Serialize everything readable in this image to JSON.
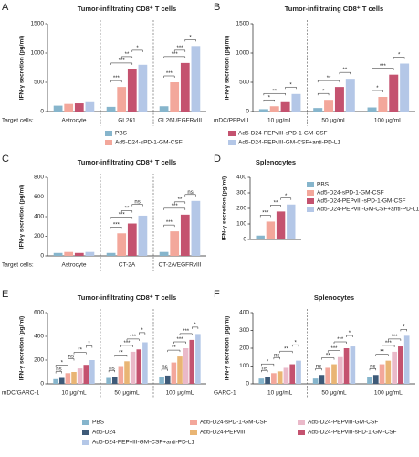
{
  "chart_data": [
    {
      "type": "bar",
      "panel": "A",
      "title": "Tumor-infiltrating CD8⁺ T cells",
      "ylabel": "IFN-γ secretion (pg/ml)",
      "xlabel": "Target cells:",
      "categories": [
        "Astrocyte",
        "GL261",
        "GL261/EGFRvIII"
      ],
      "series": [
        {
          "name": "PBS",
          "color": "#86b5cc",
          "values": [
            100,
            80,
            90
          ]
        },
        {
          "name": "Ad5-D24-sPD-1-GM-CSF",
          "color": "#f3a79b",
          "values": [
            130,
            420,
            500
          ]
        },
        {
          "name": "Ad5-D24-PEPvIII-sPD-1-GM-CSF",
          "color": "#c4526f",
          "values": [
            140,
            720,
            830
          ]
        },
        {
          "name": "Ad5-D24-PEPvIII-GM-CSF+anti-PD-L1",
          "color": "#b4c7e7",
          "values": [
            160,
            800,
            1120
          ]
        }
      ],
      "ylim": [
        0,
        1500
      ],
      "yticks": [
        0,
        500,
        1000,
        1500
      ],
      "significance": [
        {
          "group": 1,
          "from": 0,
          "to": 1,
          "label": "***"
        },
        {
          "group": 1,
          "from": 0,
          "to": 2,
          "label": "***"
        },
        {
          "group": 1,
          "from": 1,
          "to": 2,
          "label": "**"
        },
        {
          "group": 1,
          "from": 2,
          "to": 3,
          "label": "*"
        },
        {
          "group": 2,
          "from": 0,
          "to": 1,
          "label": "***"
        },
        {
          "group": 2,
          "from": 0,
          "to": 2,
          "label": "***"
        },
        {
          "group": 2,
          "from": 1,
          "to": 2,
          "label": "***"
        },
        {
          "group": 2,
          "from": 2,
          "to": 3,
          "label": "*"
        }
      ]
    },
    {
      "type": "bar",
      "panel": "B",
      "title": "Tumor-infiltrating CD8⁺ T cells",
      "ylabel": "IFN-γ secretion (pg/ml)",
      "xlabel": "mDC/PEPvIII",
      "categories": [
        "10 μg/mL",
        "50 μg/mL",
        "100 μg/mL"
      ],
      "series": [
        {
          "color": "#86b5cc",
          "values": [
            40,
            60,
            70
          ]
        },
        {
          "color": "#f3a79b",
          "values": [
            90,
            200,
            250
          ]
        },
        {
          "color": "#c4526f",
          "values": [
            160,
            420,
            630
          ]
        },
        {
          "color": "#b4c7e7",
          "values": [
            300,
            560,
            820
          ]
        }
      ],
      "ylim": [
        0,
        1500
      ],
      "yticks": [
        0,
        500,
        1000,
        1500
      ],
      "significance": [
        {
          "group": 0,
          "from": 0,
          "to": 1,
          "label": "*"
        },
        {
          "group": 0,
          "from": 0,
          "to": 2,
          "label": "**"
        },
        {
          "group": 0,
          "from": 2,
          "to": 3,
          "label": "*"
        },
        {
          "group": 1,
          "from": 0,
          "to": 1,
          "label": "*"
        },
        {
          "group": 1,
          "from": 0,
          "to": 2,
          "label": "**"
        },
        {
          "group": 1,
          "from": 2,
          "to": 3,
          "label": "**"
        },
        {
          "group": 2,
          "from": 0,
          "to": 1,
          "label": "*"
        },
        {
          "group": 2,
          "from": 0,
          "to": 2,
          "label": "***"
        },
        {
          "group": 2,
          "from": 2,
          "to": 3,
          "label": "*"
        }
      ]
    },
    {
      "type": "bar",
      "panel": "C",
      "title": "Tumor-infiltrating CD8⁺ T cells",
      "ylabel": "IFN-γ secretion (pg/ml)",
      "xlabel": "Target cells:",
      "categories": [
        "Astrocyte",
        "CT-2A",
        "CT-2A/EGFRvIII"
      ],
      "series": [
        {
          "color": "#86b5cc",
          "values": [
            30,
            30,
            40
          ]
        },
        {
          "color": "#f3a79b",
          "values": [
            40,
            230,
            250
          ]
        },
        {
          "color": "#c4526f",
          "values": [
            30,
            330,
            420
          ]
        },
        {
          "color": "#b4c7e7",
          "values": [
            40,
            410,
            560
          ]
        }
      ],
      "ylim": [
        0,
        800
      ],
      "yticks": [
        0,
        200,
        400,
        600,
        800
      ],
      "significance": [
        {
          "group": 1,
          "from": 0,
          "to": 1,
          "label": "***"
        },
        {
          "group": 1,
          "from": 0,
          "to": 2,
          "label": "***"
        },
        {
          "group": 1,
          "from": 1,
          "to": 2,
          "label": "**"
        },
        {
          "group": 1,
          "from": 2,
          "to": 3,
          "label": "ns"
        },
        {
          "group": 2,
          "from": 0,
          "to": 1,
          "label": "***"
        },
        {
          "group": 2,
          "from": 0,
          "to": 2,
          "label": "***"
        },
        {
          "group": 2,
          "from": 1,
          "to": 2,
          "label": "**"
        },
        {
          "group": 2,
          "from": 2,
          "to": 3,
          "label": "ns"
        }
      ]
    },
    {
      "type": "bar",
      "panel": "D",
      "title": "Splenocytes",
      "ylabel": "IFN-γ secretion (pg/ml)",
      "categories": [
        null
      ],
      "series": [
        {
          "name": "PBS",
          "color": "#86b5cc",
          "values": [
            25
          ]
        },
        {
          "name": "Ad5-D24-sPD-1-GM-CSF",
          "color": "#f3a79b",
          "values": [
            115
          ]
        },
        {
          "name": "Ad5-D24-PEPvIII-sPD-1-GM-CSF",
          "color": "#c4526f",
          "values": [
            180
          ]
        },
        {
          "name": "Ad5-D24-PEPvIII-GM-CSF+anti-PD-L1",
          "color": "#b4c7e7",
          "values": [
            225
          ]
        }
      ],
      "ylim": [
        0,
        400
      ],
      "yticks": [
        0,
        100,
        200,
        300,
        400
      ],
      "significance": [
        {
          "group": 0,
          "from": 0,
          "to": 1,
          "label": "***"
        },
        {
          "group": 0,
          "from": 1,
          "to": 2,
          "label": "**"
        },
        {
          "group": 0,
          "from": 2,
          "to": 3,
          "label": "*"
        }
      ]
    },
    {
      "type": "bar",
      "panel": "E",
      "title": "Tumor-infiltrating CD8⁺ T cells",
      "ylabel": "IFN-γ secretion (pg/ml)",
      "xlabel": "mDC/GARC-1",
      "categories": [
        "10 μg/mL",
        "50 μg/mL",
        "100 μg/mL"
      ],
      "series": [
        {
          "name": "PBS",
          "color": "#86b5cc",
          "values": [
            40,
            50,
            60
          ]
        },
        {
          "name": "Ad5-D24",
          "color": "#3e5a78",
          "values": [
            50,
            60,
            70
          ]
        },
        {
          "name": "Ad5-D24-sPD-1-GM-CSF",
          "color": "#f3a79b",
          "values": [
            90,
            150,
            180
          ]
        },
        {
          "name": "Ad5-D24-PEPvIII",
          "color": "#e9b574",
          "values": [
            100,
            190,
            230
          ]
        },
        {
          "name": "Ad5-D24-PEPvIII-GM-CSF",
          "color": "#eab9c9",
          "values": [
            130,
            270,
            300
          ]
        },
        {
          "name": "Ad5-D24-PEPvIII-sPD-1-GM-CSF",
          "color": "#c4526f",
          "values": [
            160,
            290,
            370
          ]
        },
        {
          "name": "Ad5-D24-PEPvIII-GM-CSF+anti-PD-L1",
          "color": "#b4c7e7",
          "values": [
            200,
            350,
            420
          ]
        }
      ],
      "ylim": [
        0,
        600
      ],
      "yticks": [
        0,
        200,
        400,
        600
      ],
      "significance": [
        {
          "group": 0,
          "from": 0,
          "to": 1,
          "label": "ns"
        },
        {
          "group": 0,
          "from": 0,
          "to": 2,
          "label": "*"
        },
        {
          "group": 0,
          "from": 2,
          "to": 3,
          "label": "ns"
        },
        {
          "group": 0,
          "from": 3,
          "to": 5,
          "label": "**"
        },
        {
          "group": 0,
          "from": 5,
          "to": 6,
          "label": "*"
        },
        {
          "group": 1,
          "from": 0,
          "to": 1,
          "label": "ns"
        },
        {
          "group": 1,
          "from": 1,
          "to": 3,
          "label": "**"
        },
        {
          "group": 1,
          "from": 2,
          "to": 4,
          "label": "***"
        },
        {
          "group": 1,
          "from": 3,
          "to": 5,
          "label": "***"
        },
        {
          "group": 1,
          "from": 5,
          "to": 6,
          "label": "*"
        },
        {
          "group": 2,
          "from": 0,
          "to": 1,
          "label": "ns"
        },
        {
          "group": 2,
          "from": 1,
          "to": 3,
          "label": "**"
        },
        {
          "group": 2,
          "from": 2,
          "to": 4,
          "label": "***"
        },
        {
          "group": 2,
          "from": 3,
          "to": 5,
          "label": "***"
        },
        {
          "group": 2,
          "from": 5,
          "to": 6,
          "label": "*"
        }
      ]
    },
    {
      "type": "bar",
      "panel": "F",
      "title": "Splenocytes",
      "ylabel": "IFN-γ secretion (pg/ml)",
      "xlabel": "GARC-1",
      "categories": [
        "10 μg/mL",
        "50 μg/mL",
        "100 μg/mL"
      ],
      "series": [
        {
          "color": "#86b5cc",
          "values": [
            30,
            30,
            40
          ]
        },
        {
          "color": "#3e5a78",
          "values": [
            40,
            50,
            50
          ]
        },
        {
          "color": "#f3a79b",
          "values": [
            60,
            90,
            110
          ]
        },
        {
          "color": "#e9b574",
          "values": [
            70,
            110,
            130
          ]
        },
        {
          "color": "#eab9c9",
          "values": [
            90,
            150,
            180
          ]
        },
        {
          "color": "#c4526f",
          "values": [
            110,
            200,
            210
          ]
        },
        {
          "color": "#b4c7e7",
          "values": [
            130,
            210,
            270
          ]
        }
      ],
      "ylim": [
        0,
        400
      ],
      "yticks": [
        0,
        100,
        200,
        300,
        400
      ],
      "significance": [
        {
          "group": 0,
          "from": 0,
          "to": 1,
          "label": "ns"
        },
        {
          "group": 0,
          "from": 0,
          "to": 2,
          "label": "*"
        },
        {
          "group": 0,
          "from": 2,
          "to": 3,
          "label": "ns"
        },
        {
          "group": 0,
          "from": 3,
          "to": 5,
          "label": "**"
        },
        {
          "group": 0,
          "from": 5,
          "to": 6,
          "label": "*"
        },
        {
          "group": 1,
          "from": 0,
          "to": 1,
          "label": "ns"
        },
        {
          "group": 1,
          "from": 1,
          "to": 3,
          "label": "**"
        },
        {
          "group": 1,
          "from": 2,
          "to": 4,
          "label": "***"
        },
        {
          "group": 1,
          "from": 3,
          "to": 5,
          "label": "***"
        },
        {
          "group": 1,
          "from": 5,
          "to": 6,
          "label": "*"
        },
        {
          "group": 2,
          "from": 0,
          "to": 1,
          "label": "ns"
        },
        {
          "group": 2,
          "from": 1,
          "to": 3,
          "label": "**"
        },
        {
          "group": 2,
          "from": 2,
          "to": 4,
          "label": "***"
        },
        {
          "group": 2,
          "from": 3,
          "to": 5,
          "label": "***"
        },
        {
          "group": 2,
          "from": 5,
          "to": 6,
          "label": "*"
        }
      ]
    }
  ]
}
